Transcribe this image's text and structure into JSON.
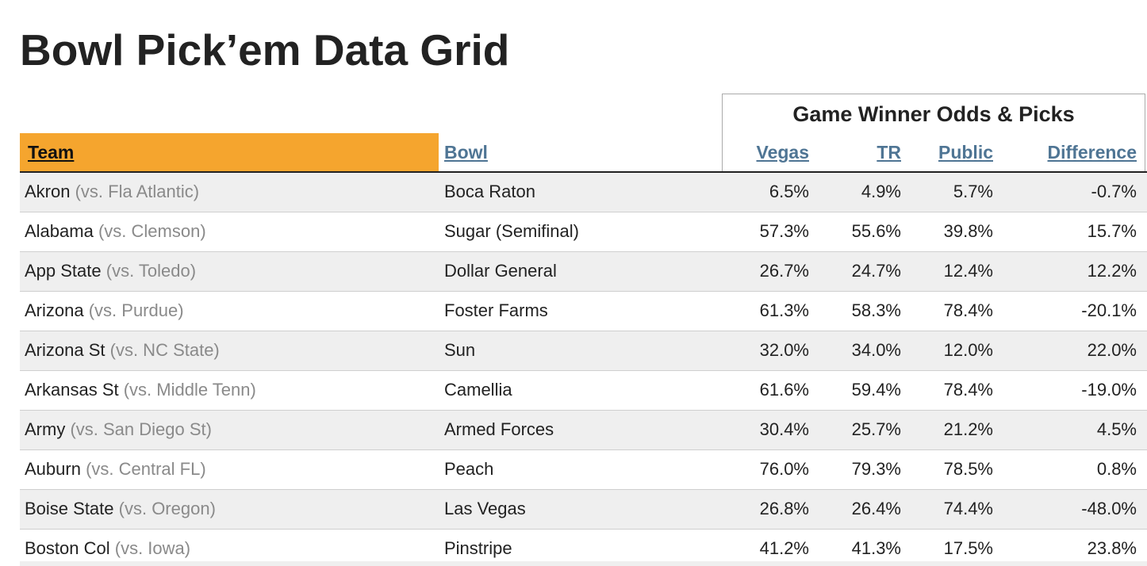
{
  "page": {
    "title": "Bowl Pick’em Data Grid"
  },
  "header": {
    "group_title": "Game Winner Odds & Picks",
    "team": "Team",
    "bowl": "Bowl",
    "vegas": "Vegas",
    "tr": "TR",
    "public": "Public",
    "difference": "Difference"
  },
  "colors": {
    "sort_header_bg": "#f5a52e",
    "link": "#4f7594",
    "row_shade": "#efefef",
    "opponent_text": "#8a8a8a"
  },
  "rows": [
    {
      "team": "Akron",
      "opponent": "(vs. Fla Atlantic)",
      "bowl": "Boca Raton",
      "vegas": "6.5%",
      "tr": "4.9%",
      "public": "5.7%",
      "difference": "-0.7%"
    },
    {
      "team": "Alabama",
      "opponent": "(vs. Clemson)",
      "bowl": "Sugar (Semifinal)",
      "vegas": "57.3%",
      "tr": "55.6%",
      "public": "39.8%",
      "difference": "15.7%"
    },
    {
      "team": "App State",
      "opponent": "(vs. Toledo)",
      "bowl": "Dollar General",
      "vegas": "26.7%",
      "tr": "24.7%",
      "public": "12.4%",
      "difference": "12.2%"
    },
    {
      "team": "Arizona",
      "opponent": "(vs. Purdue)",
      "bowl": "Foster Farms",
      "vegas": "61.3%",
      "tr": "58.3%",
      "public": "78.4%",
      "difference": "-20.1%"
    },
    {
      "team": "Arizona St",
      "opponent": "(vs. NC State)",
      "bowl": "Sun",
      "vegas": "32.0%",
      "tr": "34.0%",
      "public": "12.0%",
      "difference": "22.0%"
    },
    {
      "team": "Arkansas St",
      "opponent": "(vs. Middle Tenn)",
      "bowl": "Camellia",
      "vegas": "61.6%",
      "tr": "59.4%",
      "public": "78.4%",
      "difference": "-19.0%"
    },
    {
      "team": "Army",
      "opponent": "(vs. San Diego St)",
      "bowl": "Armed Forces",
      "vegas": "30.4%",
      "tr": "25.7%",
      "public": "21.2%",
      "difference": "4.5%"
    },
    {
      "team": "Auburn",
      "opponent": "(vs. Central FL)",
      "bowl": "Peach",
      "vegas": "76.0%",
      "tr": "79.3%",
      "public": "78.5%",
      "difference": "0.8%"
    },
    {
      "team": "Boise State",
      "opponent": "(vs. Oregon)",
      "bowl": "Las Vegas",
      "vegas": "26.8%",
      "tr": "26.4%",
      "public": "74.4%",
      "difference": "-48.0%"
    },
    {
      "team": "Boston Col",
      "opponent": "(vs. Iowa)",
      "bowl": "Pinstripe",
      "vegas": "41.2%",
      "tr": "41.3%",
      "public": "17.5%",
      "difference": "23.8%"
    }
  ]
}
